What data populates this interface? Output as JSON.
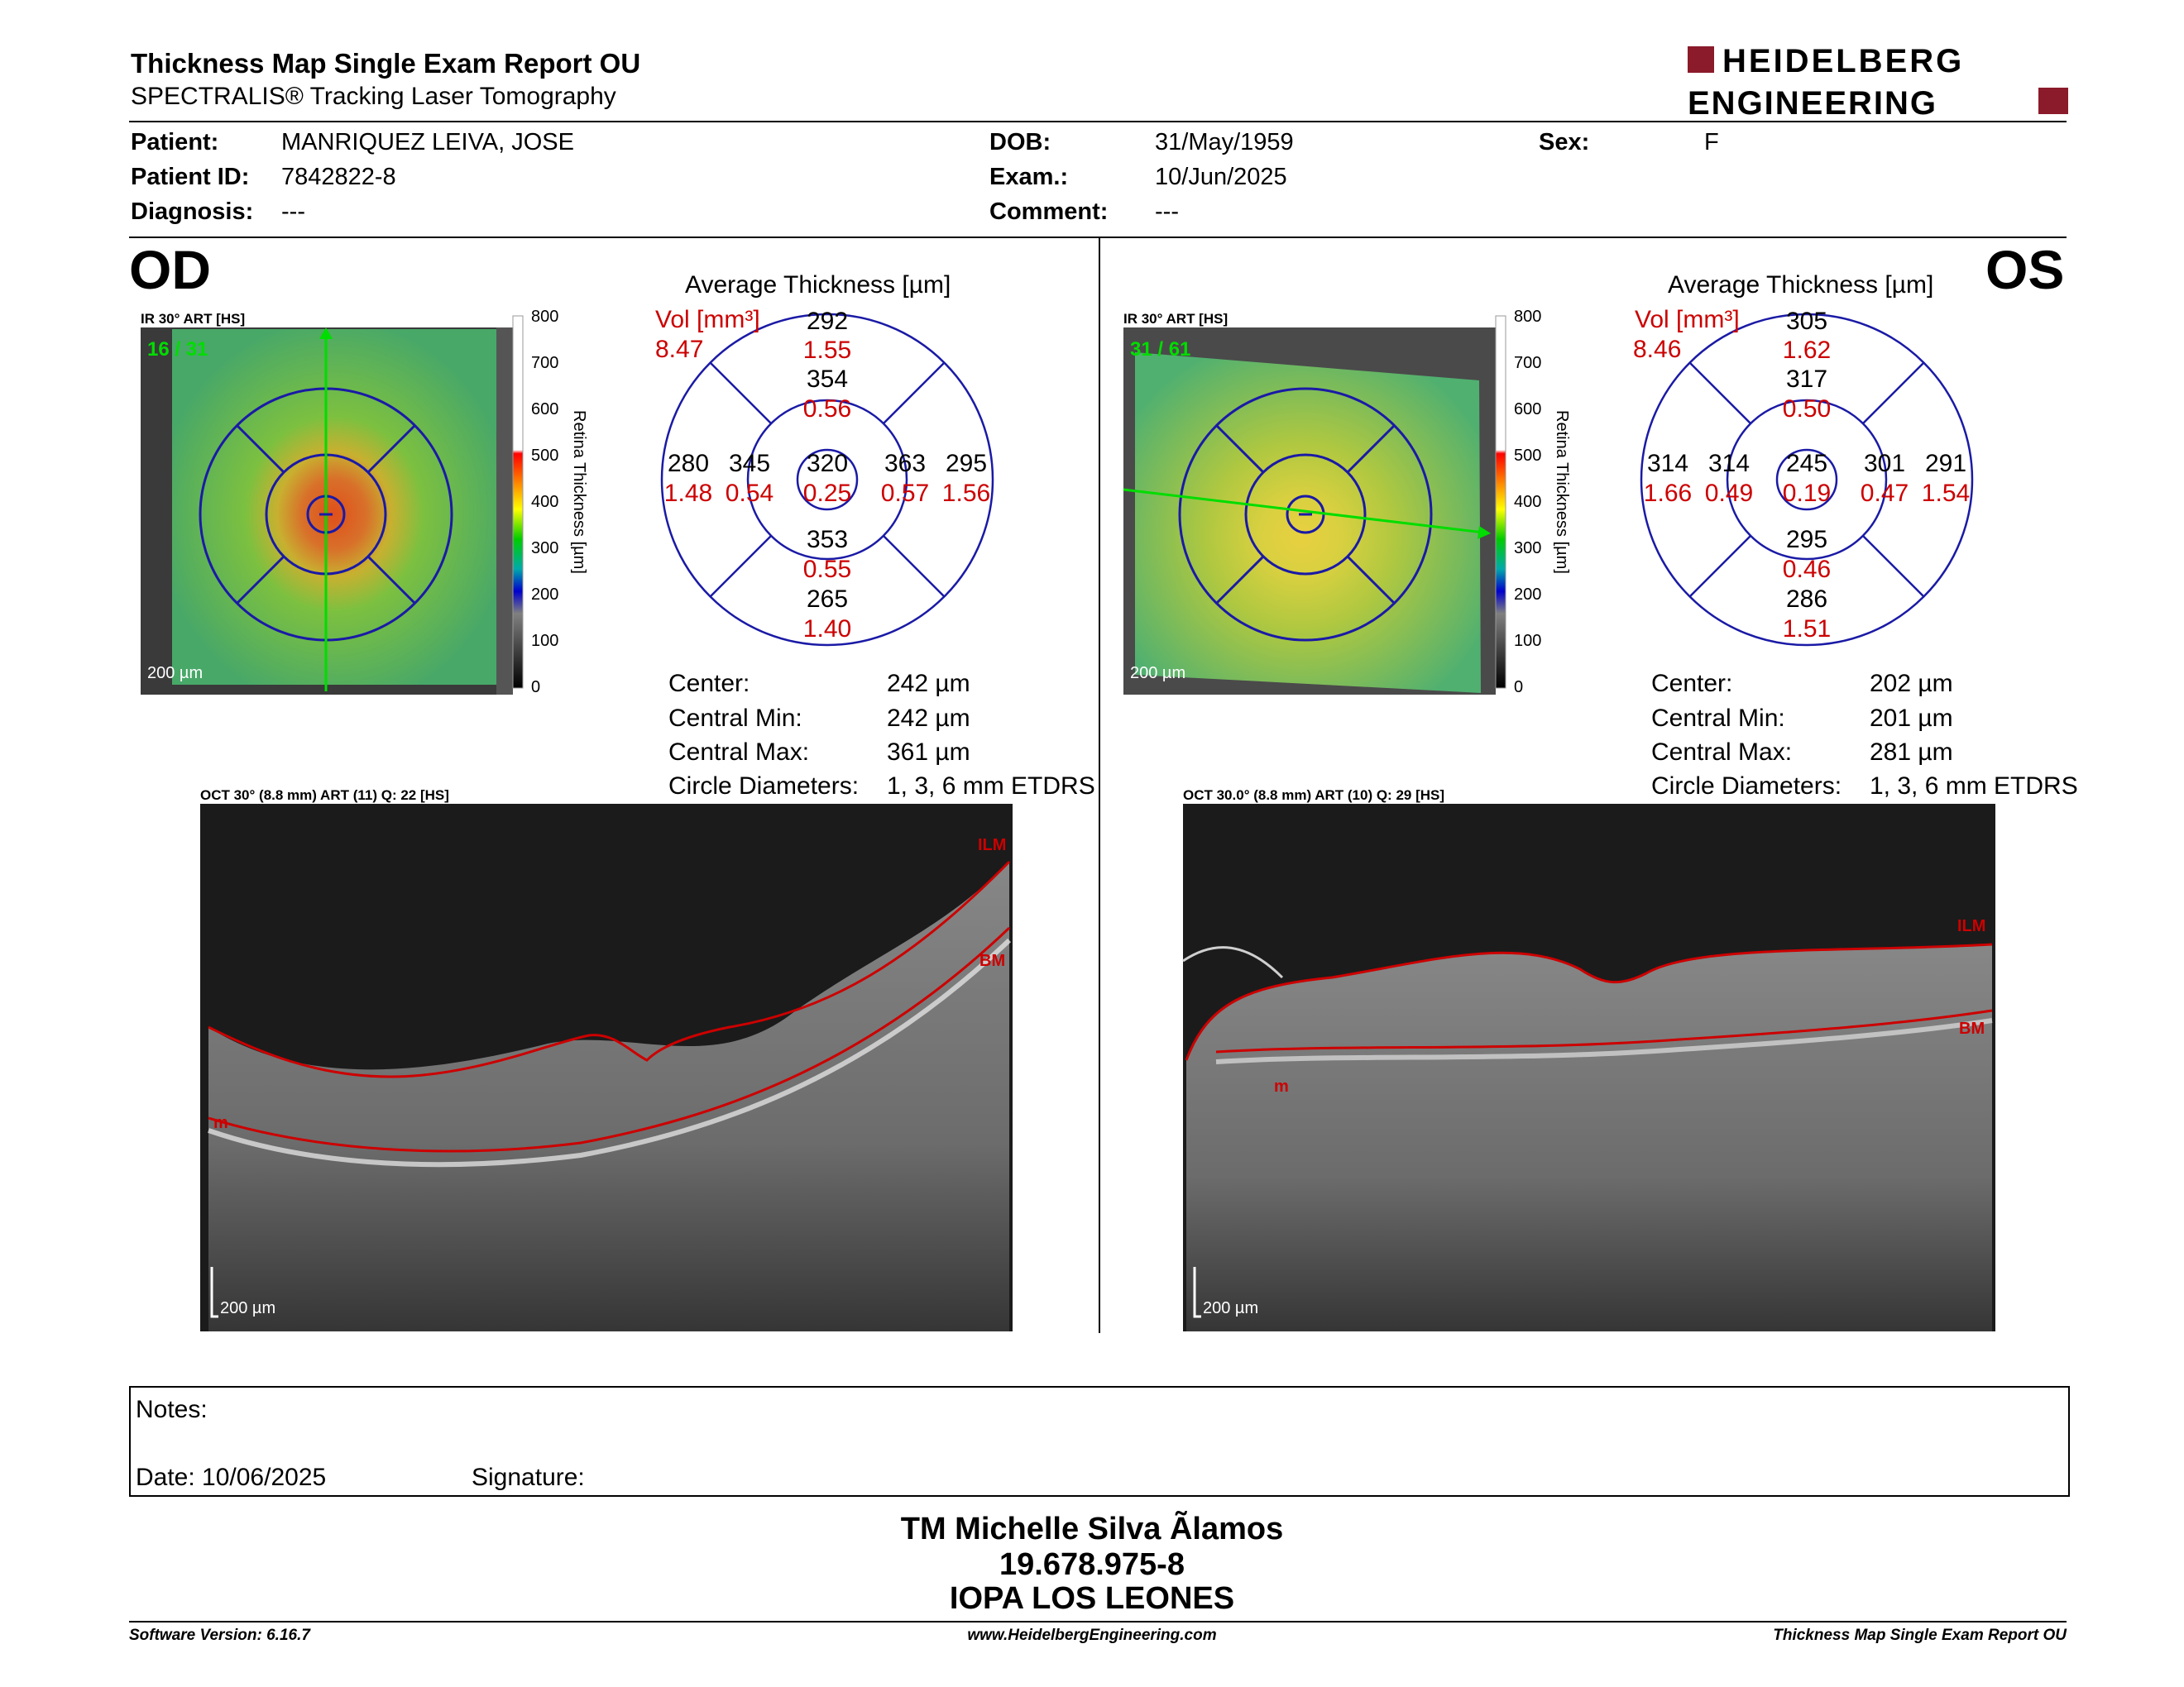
{
  "header": {
    "title": "Thickness Map Single Exam Report OU",
    "subtitle": "SPECTRALIS® Tracking Laser Tomography",
    "logo_line1": "HEIDELBERG",
    "logo_line2": "ENGINEERING",
    "brand_color": "#8b1a2a"
  },
  "patient": {
    "patient_label": "Patient:",
    "patient": "MANRIQUEZ LEIVA, JOSE",
    "id_label": "Patient ID:",
    "id": "7842822-8",
    "diag_label": "Diagnosis:",
    "diagnosis": "---",
    "dob_label": "DOB:",
    "dob": "31/May/1959",
    "exam_label": "Exam.:",
    "exam": "10/Jun/2025",
    "comment_label": "Comment:",
    "comment": "---",
    "sex_label": "Sex:",
    "sex": "F"
  },
  "od": {
    "eye": "OD",
    "ir_label": "IR 30° ART [HS]",
    "frames": "16 / 31",
    "scale": "200 µm",
    "colorbar_ticks": [
      "800",
      "700",
      "600",
      "500",
      "400",
      "300",
      "200",
      "100",
      "0"
    ],
    "colorbar_title": "Retina Thickness [µm]",
    "avg_title": "Average Thickness [µm]",
    "vol_label": "Vol [mm³]",
    "vol": "8.47",
    "grid": {
      "outer_sup": "292",
      "outer_sup_vol": "1.55",
      "inner_sup": "354",
      "inner_sup_vol": "0.56",
      "outer_temp": "280",
      "outer_temp_vol": "1.48",
      "inner_temp": "345",
      "inner_temp_vol": "0.54",
      "center": "320",
      "center_vol": "0.25",
      "inner_nas": "363",
      "inner_nas_vol": "0.57",
      "outer_nas": "295",
      "outer_nas_vol": "1.56",
      "inner_inf": "353",
      "inner_inf_vol": "0.55",
      "outer_inf": "265",
      "outer_inf_vol": "1.40"
    },
    "stats": {
      "center_label": "Center:",
      "center": "242 µm",
      "min_label": "Central Min:",
      "min": "242 µm",
      "max_label": "Central Max:",
      "max": "361 µm",
      "diam_label": "Circle Diameters:",
      "diam": "1, 3, 6 mm ETDRS"
    },
    "oct_label": "OCT 30° (8.8 mm) ART (11) Q: 22 [HS]",
    "ilm": "ILM",
    "bm": "BM",
    "m": "m",
    "oct_scale": "200 µm"
  },
  "os": {
    "eye": "OS",
    "ir_label": "IR 30° ART [HS]",
    "frames": "31 / 61",
    "scale": "200 µm",
    "colorbar_ticks": [
      "800",
      "700",
      "600",
      "500",
      "400",
      "300",
      "200",
      "100",
      "0"
    ],
    "colorbar_title": "Retina Thickness [µm]",
    "avg_title": "Average Thickness [µm]",
    "vol_label": "Vol [mm³]",
    "vol": "8.46",
    "grid": {
      "outer_sup": "305",
      "outer_sup_vol": "1.62",
      "inner_sup": "317",
      "inner_sup_vol": "0.50",
      "outer_temp": "314",
      "outer_temp_vol": "1.66",
      "inner_temp": "314",
      "inner_temp_vol": "0.49",
      "center": "245",
      "center_vol": "0.19",
      "inner_nas": "301",
      "inner_nas_vol": "0.47",
      "outer_nas": "291",
      "outer_nas_vol": "1.54",
      "inner_inf": "295",
      "inner_inf_vol": "0.46",
      "outer_inf": "286",
      "outer_inf_vol": "1.51"
    },
    "stats": {
      "center_label": "Center:",
      "center": "202 µm",
      "min_label": "Central Min:",
      "min": "201 µm",
      "max_label": "Central Max:",
      "max": "281 µm",
      "diam_label": "Circle Diameters:",
      "diam": "1, 3, 6 mm ETDRS"
    },
    "oct_label": "OCT 30.0° (8.8 mm) ART (10) Q: 29 [HS]",
    "ilm": "ILM",
    "bm": "BM",
    "m": "m",
    "oct_scale": "200 µm"
  },
  "notes": {
    "label": "Notes:",
    "date": "Date: 10/06/2025",
    "signature": "Signature:"
  },
  "signer": {
    "name": "TM Michelle Silva Ãlamos",
    "rut": "19.678.975-8",
    "org": "IOPA LOS LEONES"
  },
  "footer": {
    "version": "Software Version: 6.16.7",
    "url": "www.HeidelbergEngineering.com",
    "report": "Thickness Map Single Exam Report OU"
  },
  "colors": {
    "red": "#cc0000",
    "grid_blue": "#1a1aa6",
    "green": "#00cc00"
  }
}
